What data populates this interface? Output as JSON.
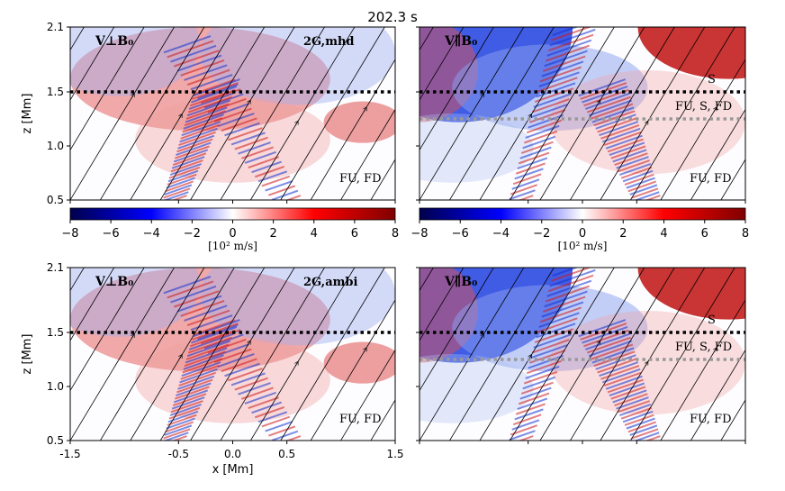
{
  "chart_data": {
    "type": "heatmap",
    "title": "202.3 s",
    "colorbar": {
      "label": "[10² m/s]",
      "range": [
        -8,
        8
      ],
      "ticks": [
        -8,
        -6,
        -4,
        -2,
        0,
        2,
        4,
        6,
        8
      ],
      "tick_labels": [
        "−8",
        "−6",
        "−4",
        "−2",
        "0",
        "2",
        "4",
        "6",
        "8"
      ],
      "colormap": "seismic"
    },
    "x_axis": {
      "label": "x [Mm]",
      "range": [
        -1.5,
        1.5
      ],
      "ticks": [
        -1.5,
        -0.5,
        0.0,
        0.5,
        1.5
      ],
      "tick_labels": [
        "-1.5",
        "-0.5",
        "0.0",
        "0.5",
        "1.5"
      ]
    },
    "y_axis": {
      "label": "z [Mm]",
      "range": [
        0.5,
        2.1
      ],
      "ticks": [
        0.5,
        1.0,
        1.5,
        2.1
      ],
      "tick_labels": [
        "0.5",
        "1.0",
        "1.5",
        "2.1"
      ]
    },
    "reference_lines": [
      {
        "name": "black-dotted",
        "z": 1.5,
        "color": "#000000"
      },
      {
        "name": "gray-dotted",
        "z": 1.25,
        "color": "#999999"
      }
    ],
    "panels": [
      {
        "id": "tl",
        "component": "V⊥B₀",
        "run": "2G,mhd",
        "labels": [
          "FU, FD"
        ],
        "colorbar": true
      },
      {
        "id": "tr",
        "component": "V∥B₀",
        "run": "",
        "labels": [
          "S",
          "FU, S, FD",
          "FU, FD"
        ],
        "colorbar": true
      },
      {
        "id": "bl",
        "component": "V⊥B₀",
        "run": "2G,ambi",
        "labels": [
          "FU, FD"
        ],
        "colorbar": false
      },
      {
        "id": "br",
        "component": "V∥B₀",
        "run": "",
        "labels": [
          "S",
          "FU, S, FD",
          "FU, FD"
        ],
        "colorbar": false
      }
    ]
  }
}
